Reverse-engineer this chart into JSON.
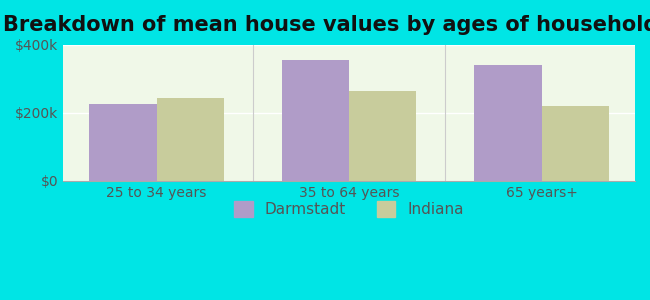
{
  "title": "Breakdown of mean house values by ages of householders",
  "categories": [
    "25 to 34 years",
    "35 to 64 years",
    "65 years+"
  ],
  "darmstadt_values": [
    225000,
    355000,
    340000
  ],
  "indiana_values": [
    245000,
    265000,
    220000
  ],
  "darmstadt_color": "#b09cc8",
  "indiana_color": "#c8cc9c",
  "ylim": [
    0,
    400000
  ],
  "yticks": [
    0,
    200000,
    400000
  ],
  "ytick_labels": [
    "$0",
    "$200k",
    "$400k"
  ],
  "background_color": "#00e5e5",
  "plot_bg_start": "#f0f8e8",
  "plot_bg_end": "#ffffff",
  "bar_width": 0.35,
  "legend_labels": [
    "Darmstadt",
    "Indiana"
  ],
  "title_fontsize": 15,
  "tick_fontsize": 10,
  "legend_fontsize": 11
}
